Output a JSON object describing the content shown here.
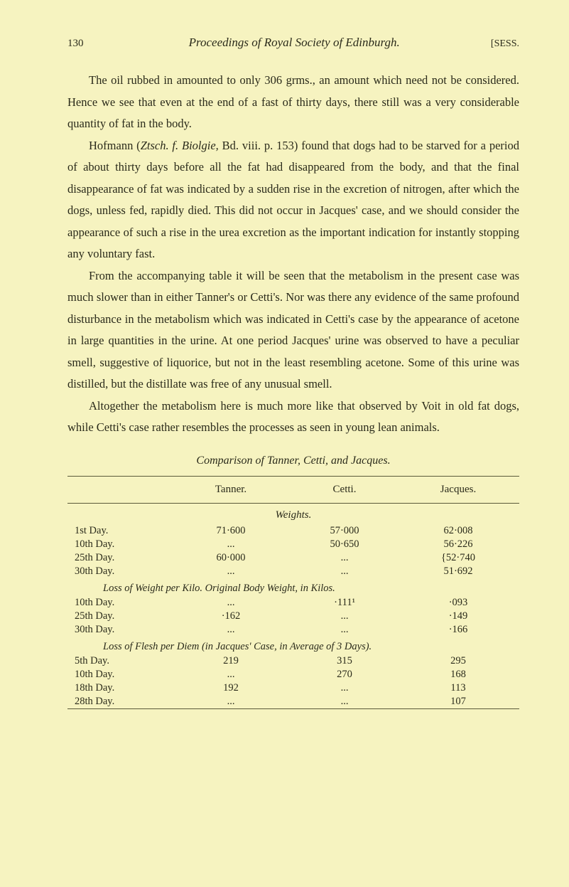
{
  "header": {
    "page_number": "130",
    "running_title": "Proceedings of Royal Society of Edinburgh.",
    "marker": "[SESS."
  },
  "paragraphs": {
    "p1": "The oil rubbed in amounted to only 306 grms., an amount which need not be considered. Hence we see that even at the end of a fast of thirty days, there still was a very considerable quantity of fat in the body.",
    "p2a": "Hofmann (",
    "p2b": "Ztsch. f. Biolgie,",
    "p2c": " Bd. viii. p. 153) found that dogs had to be starved for a period of about thirty days before all the fat had disappeared from the body, and that the final disappearance of fat was indicated by a sudden rise in the excretion of nitrogen, after which the dogs, unless fed, rapidly died. This did not occur in Jacques' case, and we should consider the appearance of such a rise in the urea excretion as the important indication for instantly stopping any voluntary fast.",
    "p3": "From the accompanying table it will be seen that the metabolism in the present case was much slower than in either Tanner's or Cetti's. Nor was there any evidence of the same profound disturbance in the metabolism which was indicated in Cetti's case by the appearance of acetone in large quantities in the urine. At one period Jacques' urine was observed to have a peculiar smell, suggestive of liquorice, but not in the least resembling acetone. Some of this urine was distilled, but the distillate was free of any unusual smell.",
    "p4": "Altogether the metabolism here is much more like that observed by Voit in old fat dogs, while Cetti's case rather resembles the processes as seen in young lean animals."
  },
  "comparison": {
    "title": "Comparison of Tanner, Cetti, and Jacques.",
    "headers": {
      "tanner": "Tanner.",
      "cetti": "Cetti.",
      "jacques": "Jacques."
    },
    "sections": {
      "weights": {
        "title": "Weights.",
        "rows": [
          {
            "label": "1st Day.",
            "tanner": "71·600",
            "cetti": "57·000",
            "jacques": "62·008"
          },
          {
            "label": "10th Day.",
            "tanner": "...",
            "cetti": "50·650",
            "jacques": "56·226"
          },
          {
            "label": "25th Day.",
            "tanner": "60·000",
            "cetti": "...",
            "jacques": "{52·740"
          },
          {
            "label": "30th Day.",
            "tanner": "...",
            "cetti": "...",
            "jacques": "51·692"
          }
        ]
      },
      "loss_weight": {
        "title": "Loss of Weight per Kilo.   Original Body Weight, in Kilos.",
        "rows": [
          {
            "label": "10th Day.",
            "tanner": "...",
            "cetti": "·111¹",
            "jacques": "·093"
          },
          {
            "label": "25th Day.",
            "tanner": "·162",
            "cetti": "...",
            "jacques": "·149"
          },
          {
            "label": "30th Day.",
            "tanner": "...",
            "cetti": "...",
            "jacques": "·166"
          }
        ]
      },
      "loss_flesh": {
        "title": "Loss of Flesh per Diem (in Jacques' Case, in Average of 3 Days).",
        "rows": [
          {
            "label": "5th Day.",
            "tanner": "219",
            "cetti": "315",
            "jacques": "295"
          },
          {
            "label": "10th Day.",
            "tanner": "...",
            "cetti": "270",
            "jacques": "168"
          },
          {
            "label": "18th Day.",
            "tanner": "192",
            "cetti": "...",
            "jacques": "113"
          },
          {
            "label": "28th Day.",
            "tanner": "...",
            "cetti": "...",
            "jacques": "107"
          }
        ]
      }
    }
  },
  "colors": {
    "background": "#f6f3c0",
    "text": "#2a2a1a",
    "rule": "#5a5a3a"
  },
  "typography": {
    "body_fontsize": 16.5,
    "line_height": 1.85,
    "header_fontsize": 17
  }
}
